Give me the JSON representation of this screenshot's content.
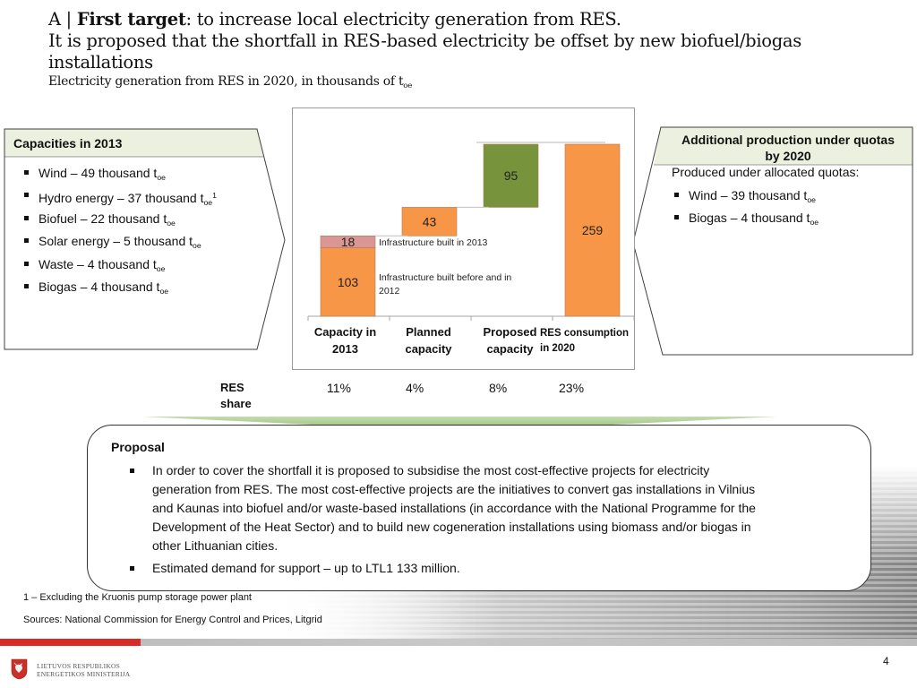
{
  "header": {
    "prefix": "A | ",
    "title_bold": "First target",
    "title_rest": ": to increase local electricity generation from RES.",
    "line2": "It is proposed that the shortfall in RES-based electricity be offset by new biofuel/biogas",
    "line3": "installations",
    "subtitle": "Electricity generation from RES in 2020, in thousands of t",
    "subtitle_sub": "oe"
  },
  "left_panel": {
    "title": "Capacities in 2013",
    "items": [
      {
        "text": "Wind – 49 thousand  t",
        "sub": "oe",
        "sup": ""
      },
      {
        "text": "Hydro energy – 37  thousand  t",
        "sub": "oe",
        "sup": "1"
      },
      {
        "text": "Biofuel –  22 thousand  t",
        "sub": "oe",
        "sup": ""
      },
      {
        "text": "Solar energy – 5 thousand  t",
        "sub": "oe",
        "sup": ""
      },
      {
        "text": "Waste – 4 thousand  t",
        "sub": "oe",
        "sup": ""
      },
      {
        "text": "Biogas – 4 thousand t",
        "sub": "oe",
        "sup": ""
      }
    ]
  },
  "right_panel": {
    "title_line1": "Additional production under quotas",
    "title_line2": "by 2020",
    "intro": "Produced under allocated quotas:",
    "items": [
      {
        "text": "Wind – 39 thousand t",
        "sub": "oe"
      },
      {
        "text": "Biogas – 4 thousand t",
        "sub": "oe"
      }
    ]
  },
  "chart_data": {
    "type": "bar",
    "subtype": "waterfall",
    "title": "Electricity generation from RES in 2020, in thousands of toe",
    "categories": [
      "Capacity in 2013",
      "Planned capacity",
      "Proposed capacity",
      "RES consumption in 2020"
    ],
    "category_lines": [
      [
        "Capacity in",
        "2013"
      ],
      [
        "Planned",
        "capacity"
      ],
      [
        "Proposed",
        "capacity"
      ],
      [
        "RES consumption",
        "in 2020"
      ]
    ],
    "segments": [
      {
        "category": "Capacity in 2013",
        "name": "Infrastructure built before and in 2012",
        "base": 0,
        "value": 103,
        "color": "#f79646"
      },
      {
        "category": "Capacity in 2013",
        "name": "Infrastructure built in 2013",
        "base": 103,
        "value": 18,
        "color": "#d99694"
      },
      {
        "category": "Planned capacity",
        "name": "Planned capacity",
        "base": 121,
        "value": 43,
        "color": "#f79646"
      },
      {
        "category": "Proposed capacity",
        "name": "Proposed capacity",
        "base": 164,
        "value": 95,
        "color": "#77933c"
      },
      {
        "category": "RES consumption in 2020",
        "name": "RES consumption in 2020",
        "base": 0,
        "value": 259,
        "color": "#f79646"
      }
    ],
    "annotations": [
      {
        "text": "Infrastructure built in 2013",
        "lines": [
          "Infrastructure built in 2013"
        ]
      },
      {
        "text": "Infrastructure built before and in 2012",
        "lines": [
          "Infrastructure built before and in",
          "2012"
        ]
      }
    ],
    "res_share": {
      "label_line1": "RES",
      "label_line2": "share",
      "values": [
        "11%",
        "4%",
        "8%",
        "23%"
      ]
    },
    "ylim": [
      0,
      259
    ],
    "grid": false,
    "xlabel": "",
    "ylabel": ""
  },
  "proposal": {
    "title": "Proposal",
    "items": [
      {
        "lines": [
          "In order to cover the shortfall it is proposed to subsidise the most cost-effective projects for electricity",
          "generation from RES. The most cost-effective projects are the initiatives to convert gas installations in Vilnius",
          "and Kaunas into biofuel and/or waste-based installations (in accordance with the National Programme for the",
          "Development of the Heat Sector) and to build new cogeneration installations using biomass and/or biogas in",
          "other Lithuanian cities."
        ]
      },
      {
        "lines": [
          "Estimated demand for support – up to LTL1 133 million."
        ]
      }
    ]
  },
  "footer": {
    "footnote": "1 – Excluding the Kruonis pump storage power plant",
    "sources": "Sources: National Commission for Energy Control and Prices, Litgrid",
    "ministry_line1": "LIETUVOS RESPUBLIKOS",
    "ministry_line2": "ENERGETIKOS MINISTERIJA",
    "page_number": "4"
  },
  "colors": {
    "orange": "#f79646",
    "pink": "#d99694",
    "green": "#77933c",
    "panel_header": "#ebf1de",
    "arrow": "#9bc27a",
    "red_bar": "#d92a25"
  }
}
